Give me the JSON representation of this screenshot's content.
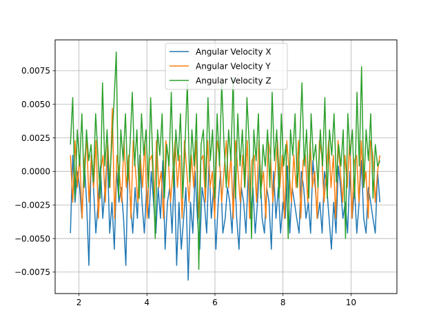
{
  "chart_data": {
    "type": "line",
    "title": "",
    "xlabel": "",
    "ylabel": "",
    "xlim": [
      1.3,
      11.35
    ],
    "ylim": [
      -0.0091,
      0.0098
    ],
    "x_ticks": [
      2,
      4,
      6,
      8,
      10
    ],
    "y_ticks": [
      -0.0075,
      -0.005,
      -0.0025,
      0.0,
      0.0025,
      0.005,
      0.0075
    ],
    "x_tick_labels": [
      "2",
      "4",
      "6",
      "8",
      "10"
    ],
    "y_tick_labels": [
      "−0.0075",
      "−0.0050",
      "−0.0025",
      "0.0000",
      "0.0025",
      "0.0050",
      "0.0075"
    ],
    "grid": true,
    "legend_position": "top-center",
    "x_range": [
      1.75,
      10.85
    ],
    "series": [
      {
        "name": "Angular Velocity X",
        "color": "#1f77b4",
        "values": [
          -0.0046,
          0.0012,
          -0.0023,
          0.0,
          -0.0012,
          -0.0035,
          0.0008,
          -0.0023,
          -0.007,
          0.0012,
          -0.0012,
          -0.0046,
          -0.0023,
          0.0004,
          -0.0035,
          -0.0012,
          0.0012,
          -0.0046,
          -0.0023,
          -0.0058,
          0.0,
          -0.0023,
          -0.0012,
          -0.0035,
          -0.007,
          0.0008,
          -0.0023,
          -0.0046,
          -0.0012,
          -0.0035,
          0.0012,
          -0.0023,
          -0.0046,
          -0.0012,
          -0.0035,
          0.0,
          -0.0023,
          -0.0046,
          -0.0012,
          -0.0035,
          0.0008,
          -0.0058,
          -0.0023,
          -0.0012,
          -0.0046,
          0.0,
          -0.007,
          -0.0023,
          -0.0058,
          -0.0035,
          -0.0012,
          -0.0081,
          -0.0023,
          -0.0046,
          0.0,
          -0.0035,
          -0.0058,
          -0.0012,
          -0.0023,
          -0.0046,
          0.0008,
          -0.0035,
          -0.0012,
          -0.0058,
          -0.0023,
          0.0,
          -0.0046,
          -0.0035,
          -0.0012,
          -0.0023,
          -0.0046,
          0.0004,
          -0.0035,
          -0.0058,
          -0.0012,
          -0.0023,
          -0.0046,
          0.0,
          -0.0035,
          -0.0012,
          -0.0046,
          -0.0023,
          0.0008,
          -0.0035,
          -0.0046,
          -0.0012,
          -0.0023,
          -0.0058,
          0.0,
          -0.0035,
          -0.0012,
          -0.0046,
          -0.0023,
          -0.0035,
          0.0004,
          -0.0046,
          -0.0012,
          -0.0023,
          -0.0035,
          -0.0046,
          0.0,
          -0.0012,
          -0.0035,
          -0.0023,
          -0.0046,
          0.0008,
          -0.0012,
          -0.0035,
          -0.0023,
          -0.0046,
          0.0,
          -0.0012,
          -0.0035,
          -0.0058,
          -0.0023,
          -0.0046,
          0.0004,
          -0.0012,
          -0.0035,
          -0.0023,
          -0.0046,
          0.0,
          -0.0035,
          -0.0012,
          -0.0046,
          -0.0023,
          0.0008,
          -0.0035,
          -0.0046,
          -0.0012,
          -0.0023,
          -0.0035,
          -0.0046,
          0.0,
          -0.0023
        ]
      },
      {
        "name": "Angular Velocity Y",
        "color": "#ff7f0e",
        "values": [
          0.0012,
          -0.0023,
          0.0023,
          -0.0012,
          0.0012,
          -0.0035,
          0.0008,
          0.0023,
          -0.0023,
          0.0012,
          -0.0012,
          0.0023,
          -0.0035,
          0.0,
          0.0012,
          -0.0023,
          0.0023,
          -0.0012,
          0.0047,
          -0.0035,
          0.0012,
          0.0,
          -0.0023,
          0.0023,
          -0.0012,
          0.0012,
          -0.0035,
          0.0023,
          0.0,
          -0.0023,
          0.0012,
          -0.0012,
          0.0023,
          -0.0035,
          0.0008,
          0.0012,
          -0.0023,
          0.0023,
          -0.0012,
          0.0,
          -0.0035,
          0.0023,
          0.0012,
          -0.0023,
          0.0,
          0.0023,
          -0.0012,
          0.0012,
          -0.0035,
          0.0023,
          0.0,
          -0.0023,
          0.0012,
          -0.0012,
          0.0023,
          -0.0035,
          0.0008,
          0.0012,
          -0.0023,
          0.0023,
          -0.0012,
          0.0,
          -0.0035,
          0.0023,
          0.0012,
          -0.0023,
          0.0,
          0.0023,
          -0.0012,
          0.0012,
          -0.0035,
          0.0023,
          0.0,
          -0.0023,
          0.0012,
          -0.0012,
          0.0023,
          -0.0035,
          0.0008,
          0.0012,
          -0.0023,
          0.0023,
          -0.0012,
          0.0,
          -0.0035,
          0.0023,
          0.0012,
          -0.0023,
          0.0,
          0.0023,
          -0.0012,
          0.0012,
          -0.0035,
          0.0023,
          0.0,
          -0.0023,
          0.0012,
          -0.0012,
          0.0023,
          -0.0035,
          0.0008,
          0.0012,
          -0.0023,
          0.0023,
          -0.0012,
          0.0,
          -0.0035,
          0.0023,
          0.0012,
          -0.0023,
          0.0,
          0.0023,
          -0.0012,
          0.0012,
          -0.0035,
          0.0023,
          0.0,
          -0.0023,
          0.0012,
          -0.0012,
          0.0023,
          -0.0035,
          0.0008,
          0.0012,
          -0.0023,
          0.0023,
          -0.0012,
          0.0,
          -0.0035,
          0.0023,
          0.0012,
          -0.0023,
          0.0,
          0.0012
        ]
      },
      {
        "name": "Angular Velocity Z",
        "color": "#2ca02c",
        "values": [
          0.002,
          0.0055,
          -0.002,
          0.0031,
          0.0004,
          0.0043,
          -0.0012,
          0.0031,
          0.0008,
          0.002,
          -0.0008,
          0.0043,
          0.0012,
          -0.002,
          0.0066,
          0.0004,
          0.0031,
          -0.0012,
          0.002,
          0.0051,
          0.0089,
          -0.002,
          0.0031,
          0.0008,
          0.0043,
          -0.0008,
          0.002,
          0.0059,
          0.0004,
          0.0031,
          -0.002,
          0.0043,
          0.0012,
          0.0031,
          -0.0012,
          0.0055,
          0.0004,
          -0.005,
          0.0031,
          0.0012,
          0.0043,
          -0.002,
          0.002,
          0.0004,
          0.0059,
          -0.0012,
          0.0031,
          0.0008,
          0.0043,
          -0.002,
          0.002,
          0.0066,
          -0.0008,
          0.0031,
          0.0004,
          0.0043,
          -0.0073,
          0.002,
          0.0031,
          -0.0012,
          0.0055,
          0.0008,
          0.0031,
          -0.002,
          0.0043,
          0.0004,
          0.0066,
          0.002,
          -0.0012,
          0.0031,
          0.0008,
          0.007,
          -0.002,
          0.0043,
          0.0004,
          0.0031,
          -0.0012,
          0.0055,
          0.002,
          -0.005,
          0.0031,
          0.0008,
          0.0043,
          -0.002,
          0.002,
          0.0004,
          0.0031,
          -0.0012,
          0.0059,
          0.0008,
          0.0031,
          -0.002,
          0.0043,
          0.0004,
          0.002,
          -0.005,
          0.0031,
          0.0012,
          0.0043,
          -0.0012,
          0.002,
          0.0066,
          0.0004,
          0.0031,
          -0.002,
          0.0043,
          0.0008,
          0.002,
          -0.0012,
          0.0031,
          0.0004,
          0.0055,
          -0.002,
          0.0031,
          0.0012,
          0.0043,
          -0.0008,
          0.002,
          0.0004,
          0.0031,
          -0.005,
          0.0043,
          0.0012,
          0.0031,
          -0.002,
          0.0059,
          0.0004,
          0.0078,
          -0.0012,
          0.0031,
          0.0008,
          0.0043,
          -0.002,
          0.002,
          0.0004,
          0.0008
        ]
      }
    ]
  }
}
